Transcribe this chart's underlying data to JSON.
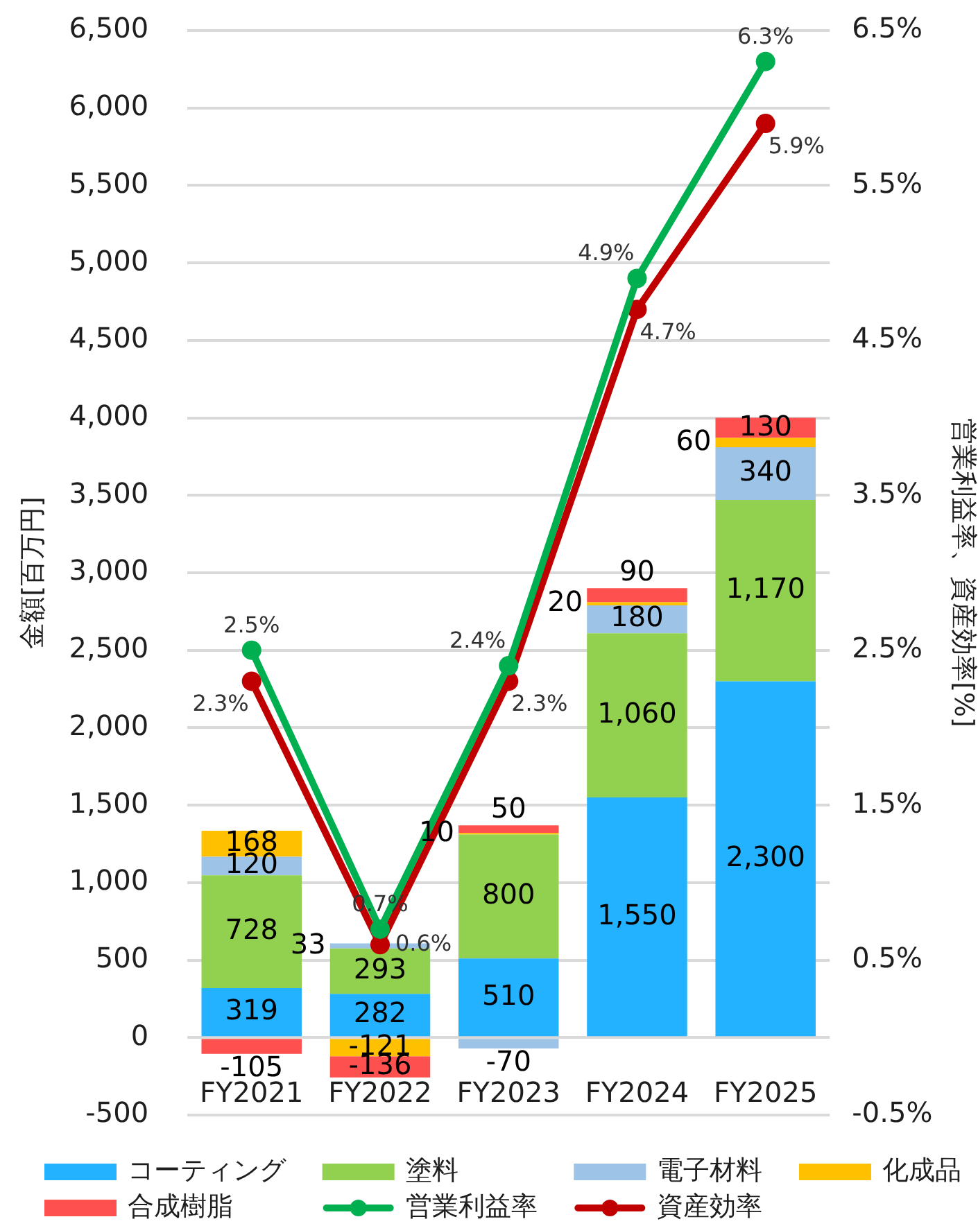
{
  "chart_data": {
    "type": "bar",
    "stacked": true,
    "categories": [
      "FY2021",
      "FY2022",
      "FY2023",
      "FY2024",
      "FY2025"
    ],
    "ylabel": "金額[百万円]",
    "y2label": "営業利益率、資産効率[%]",
    "ylim": [
      -500,
      6500
    ],
    "yticks": [
      -500,
      0,
      500,
      {
        "value": 1000,
        "label": "1,000"
      },
      {
        "value": 1500,
        "label": "1,500"
      },
      {
        "value": 2000,
        "label": "2,000"
      },
      {
        "value": 2500,
        "label": "2,500"
      },
      {
        "value": 3000,
        "label": "3,000"
      },
      {
        "value": 3500,
        "label": "3,500"
      },
      {
        "value": 4000,
        "label": "4,000"
      },
      {
        "value": 4500,
        "label": "4,500"
      },
      {
        "value": 5000,
        "label": "5,000"
      },
      {
        "value": 5500,
        "label": "5,500"
      },
      {
        "value": 6000,
        "label": "6,000"
      },
      {
        "value": 6500,
        "label": "6,500"
      }
    ],
    "y2lim": [
      -0.5,
      6.5
    ],
    "y2ticks": [
      {
        "value": -0.5,
        "label": "-0.5%"
      },
      {
        "value": 0.5,
        "label": "0.5%"
      },
      {
        "value": 1.5,
        "label": "1.5%"
      },
      {
        "value": 2.5,
        "label": "2.5%"
      },
      {
        "value": 3.5,
        "label": "3.5%"
      },
      {
        "value": 4.5,
        "label": "4.5%"
      },
      {
        "value": 5.5,
        "label": "5.5%"
      },
      {
        "value": 6.5,
        "label": "6.5%"
      }
    ],
    "grid": "y",
    "legend": "bottom",
    "marker": "circle",
    "series": [
      {
        "name": "コーティング",
        "color": "#22b2ff",
        "values": [
          319,
          282,
          510,
          1550,
          2300
        ],
        "value_labels": [
          "319",
          "282",
          "510",
          "1,550",
          "2,300"
        ]
      },
      {
        "name": "塗料",
        "color": "#92d050",
        "values": [
          728,
          293,
          800,
          1060,
          1170
        ],
        "value_labels": [
          "728",
          "293",
          "800",
          "1,060",
          "1,170"
        ]
      },
      {
        "name": "電子材料",
        "color": "#9dc3e6",
        "values": [
          120,
          33,
          -70,
          180,
          340
        ],
        "value_labels": [
          "120",
          "33",
          "-70",
          "180",
          "340"
        ]
      },
      {
        "name": "化成品",
        "color": "#ffc000",
        "values": [
          168,
          -121,
          10,
          20,
          60
        ],
        "value_labels": [
          "168",
          "-121",
          "10",
          "20",
          "60"
        ]
      },
      {
        "name": "合成樹脂",
        "color": "#ff5050",
        "values": [
          -105,
          -136,
          50,
          90,
          130
        ],
        "value_labels": [
          "-105",
          "-136",
          "50",
          "90",
          "130"
        ]
      },
      {
        "name": "営業利益率",
        "type": "line",
        "axis": "y2",
        "color": "#00b050",
        "values": [
          2.5,
          0.7,
          2.4,
          4.9,
          6.3
        ],
        "value_labels": [
          "2.5%",
          "0.7%",
          "2.4%",
          "4.9%",
          "6.3%"
        ]
      },
      {
        "name": "資産効率",
        "type": "line",
        "axis": "y2",
        "color": "#c00000",
        "values": [
          2.3,
          0.6,
          2.3,
          4.7,
          5.9
        ],
        "value_labels": [
          "2.3%",
          "0.6%",
          "2.3%",
          "4.7%",
          "5.9%"
        ]
      }
    ]
  }
}
